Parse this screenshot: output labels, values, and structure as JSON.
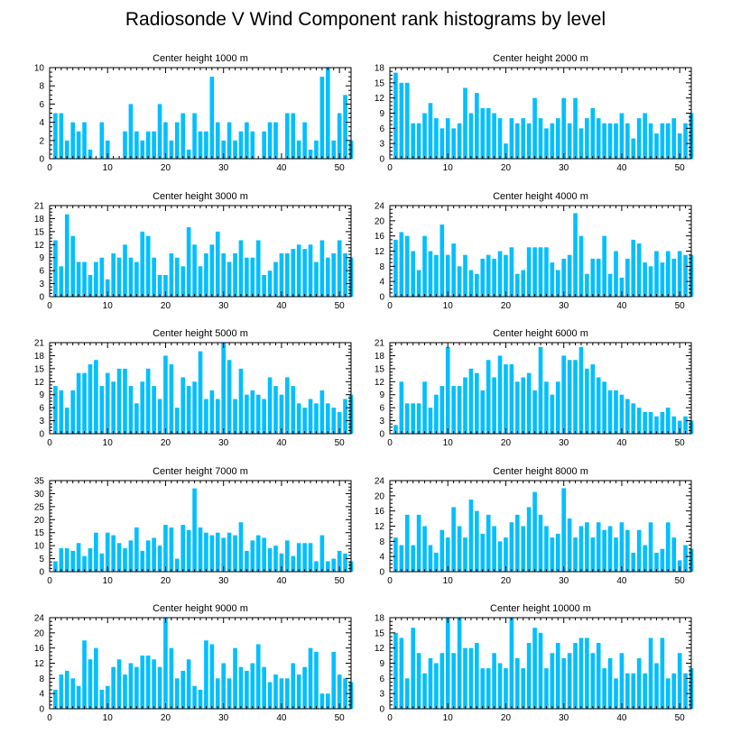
{
  "title": "Radiosonde V Wind Component rank histograms by level",
  "colors": {
    "bar": "#00bfff",
    "bar_edge": "#ffffff",
    "axis": "#000000"
  },
  "chart_data": [
    {
      "type": "bar",
      "title": "Center height 1000 m",
      "xlim": [
        0,
        52
      ],
      "xticks": [
        0,
        10,
        20,
        30,
        40,
        50
      ],
      "ylim": [
        0,
        10
      ],
      "yticks": [
        0,
        2,
        4,
        6,
        8,
        10
      ],
      "values": [
        5,
        5,
        2,
        4,
        3,
        4,
        1,
        0,
        4,
        2,
        0,
        0,
        3,
        6,
        3,
        2,
        3,
        3,
        6,
        4,
        2,
        4,
        5,
        1,
        5,
        3,
        3,
        9,
        4,
        2,
        4,
        2,
        3,
        4,
        3,
        0,
        3,
        4,
        4,
        0,
        5,
        5,
        2,
        4,
        1,
        2,
        9,
        10,
        2,
        5,
        7,
        2
      ]
    },
    {
      "type": "bar",
      "title": "Center height 2000 m",
      "xlim": [
        0,
        52
      ],
      "xticks": [
        0,
        10,
        20,
        30,
        40,
        50
      ],
      "ylim": [
        0,
        18
      ],
      "yticks": [
        0,
        3,
        6,
        9,
        12,
        15,
        18
      ],
      "values": [
        17,
        15,
        15,
        7,
        7,
        9,
        11,
        8,
        6,
        8,
        6,
        7,
        14,
        9,
        13,
        10,
        10,
        9,
        8,
        3,
        8,
        7,
        8,
        7,
        12,
        8,
        6,
        7,
        8,
        12,
        7,
        12,
        6,
        8,
        10,
        8,
        7,
        7,
        7,
        9,
        7,
        4,
        8,
        9,
        7,
        5,
        7,
        7,
        8,
        5,
        7,
        9
      ]
    },
    {
      "type": "bar",
      "title": "Center height 3000 m",
      "xlim": [
        0,
        52
      ],
      "xticks": [
        0,
        10,
        20,
        30,
        40,
        50
      ],
      "ylim": [
        0,
        21
      ],
      "yticks": [
        0,
        3,
        6,
        9,
        12,
        15,
        18,
        21
      ],
      "values": [
        13,
        7,
        19,
        14,
        8,
        8,
        5,
        8,
        9,
        4,
        10,
        9,
        12,
        9,
        8,
        15,
        14,
        9,
        5,
        5,
        10,
        9,
        7,
        16,
        12,
        7,
        10,
        12,
        15,
        10,
        8,
        10,
        13,
        9,
        9,
        13,
        5,
        6,
        8,
        10,
        10,
        11,
        12,
        11,
        12,
        8,
        13,
        9,
        10,
        13,
        10,
        9
      ]
    },
    {
      "type": "bar",
      "title": "Center height 4000 m",
      "xlim": [
        0,
        52
      ],
      "xticks": [
        0,
        10,
        20,
        30,
        40,
        50
      ],
      "ylim": [
        0,
        24
      ],
      "yticks": [
        0,
        4,
        8,
        12,
        16,
        20,
        24
      ],
      "values": [
        15,
        17,
        16,
        12,
        7,
        16,
        12,
        11,
        19,
        11,
        14,
        8,
        11,
        7,
        6,
        10,
        11,
        10,
        12,
        11,
        13,
        6,
        7,
        13,
        13,
        13,
        13,
        9,
        7,
        10,
        11,
        22,
        16,
        6,
        10,
        10,
        16,
        6,
        12,
        5,
        10,
        15,
        14,
        9,
        8,
        12,
        9,
        12,
        10,
        12,
        11,
        11
      ]
    },
    {
      "type": "bar",
      "title": "Center height 5000 m",
      "xlim": [
        0,
        52
      ],
      "xticks": [
        0,
        10,
        20,
        30,
        40,
        50
      ],
      "ylim": [
        0,
        21
      ],
      "yticks": [
        0,
        3,
        6,
        9,
        12,
        15,
        18,
        21
      ],
      "values": [
        11,
        10,
        6,
        10,
        14,
        14,
        16,
        17,
        11,
        14,
        12,
        15,
        15,
        11,
        7,
        12,
        15,
        11,
        8,
        18,
        16,
        6,
        13,
        11,
        12,
        19,
        8,
        10,
        8,
        21,
        17,
        8,
        15,
        9,
        10,
        9,
        8,
        13,
        11,
        9,
        13,
        11,
        7,
        6,
        8,
        7,
        10,
        7,
        6,
        5,
        8,
        9
      ]
    },
    {
      "type": "bar",
      "title": "Center height 6000 m",
      "xlim": [
        0,
        52
      ],
      "xticks": [
        0,
        10,
        20,
        30,
        40,
        50
      ],
      "ylim": [
        0,
        21
      ],
      "yticks": [
        0,
        3,
        6,
        9,
        12,
        15,
        18,
        21
      ],
      "values": [
        2,
        12,
        7,
        7,
        7,
        12,
        6,
        9,
        11,
        20,
        11,
        11,
        13,
        15,
        14,
        10,
        17,
        13,
        18,
        16,
        16,
        12,
        13,
        14,
        10,
        20,
        12,
        9,
        12,
        18,
        17,
        17,
        20,
        15,
        16,
        13,
        12,
        10,
        10,
        9,
        8,
        7,
        6,
        5,
        5,
        4,
        5,
        6,
        4,
        3,
        4,
        3
      ]
    },
    {
      "type": "bar",
      "title": "Center height 7000 m",
      "xlim": [
        0,
        52
      ],
      "xticks": [
        0,
        10,
        20,
        30,
        40,
        50
      ],
      "ylim": [
        0,
        35
      ],
      "yticks": [
        0,
        5,
        10,
        15,
        20,
        25,
        30,
        35
      ],
      "values": [
        4,
        9,
        9,
        8,
        11,
        6,
        9,
        15,
        7,
        15,
        14,
        11,
        9,
        12,
        17,
        8,
        12,
        13,
        10,
        18,
        17,
        5,
        18,
        16,
        32,
        17,
        15,
        14,
        15,
        13,
        15,
        14,
        19,
        8,
        12,
        14,
        13,
        9,
        10,
        7,
        12,
        6,
        11,
        11,
        11,
        4,
        14,
        4,
        5,
        8,
        7,
        4
      ]
    },
    {
      "type": "bar",
      "title": "Center height 8000 m",
      "xlim": [
        0,
        52
      ],
      "xticks": [
        0,
        10,
        20,
        30,
        40,
        50
      ],
      "ylim": [
        0,
        24
      ],
      "yticks": [
        0,
        4,
        8,
        12,
        16,
        20,
        24
      ],
      "values": [
        9,
        7,
        15,
        7,
        15,
        12,
        7,
        5,
        11,
        9,
        17,
        12,
        9,
        19,
        16,
        10,
        15,
        12,
        8,
        9,
        13,
        15,
        12,
        17,
        21,
        15,
        12,
        9,
        10,
        22,
        14,
        9,
        12,
        13,
        9,
        13,
        11,
        12,
        9,
        13,
        11,
        5,
        11,
        7,
        13,
        5,
        6,
        13,
        9,
        3,
        7,
        6
      ]
    },
    {
      "type": "bar",
      "title": "Center height 9000 m",
      "xlim": [
        0,
        52
      ],
      "xticks": [
        0,
        10,
        20,
        30,
        40,
        50
      ],
      "ylim": [
        0,
        24
      ],
      "yticks": [
        0,
        4,
        8,
        12,
        16,
        20,
        24
      ],
      "values": [
        5,
        9,
        10,
        8,
        6,
        18,
        13,
        16,
        5,
        6,
        11,
        13,
        9,
        12,
        11,
        14,
        14,
        13,
        11,
        24,
        16,
        8,
        10,
        13,
        6,
        5,
        18,
        17,
        8,
        12,
        8,
        16,
        11,
        10,
        12,
        17,
        11,
        7,
        9,
        8,
        8,
        12,
        9,
        11,
        16,
        15,
        4,
        4,
        15,
        9,
        8,
        7
      ]
    },
    {
      "type": "bar",
      "title": "Center height 10000 m",
      "xlim": [
        0,
        52
      ],
      "xticks": [
        0,
        10,
        20,
        30,
        40,
        50
      ],
      "ylim": [
        0,
        18
      ],
      "yticks": [
        0,
        3,
        6,
        9,
        12,
        15,
        18
      ],
      "values": [
        15,
        14,
        6,
        16,
        11,
        7,
        10,
        9,
        11,
        18,
        11,
        18,
        12,
        12,
        13,
        8,
        8,
        11,
        9,
        8,
        18,
        10,
        8,
        13,
        16,
        15,
        8,
        11,
        13,
        10,
        11,
        13,
        14,
        14,
        11,
        13,
        8,
        10,
        6,
        11,
        7,
        7,
        10,
        7,
        14,
        9,
        14,
        6,
        7,
        11,
        7,
        8
      ]
    }
  ]
}
